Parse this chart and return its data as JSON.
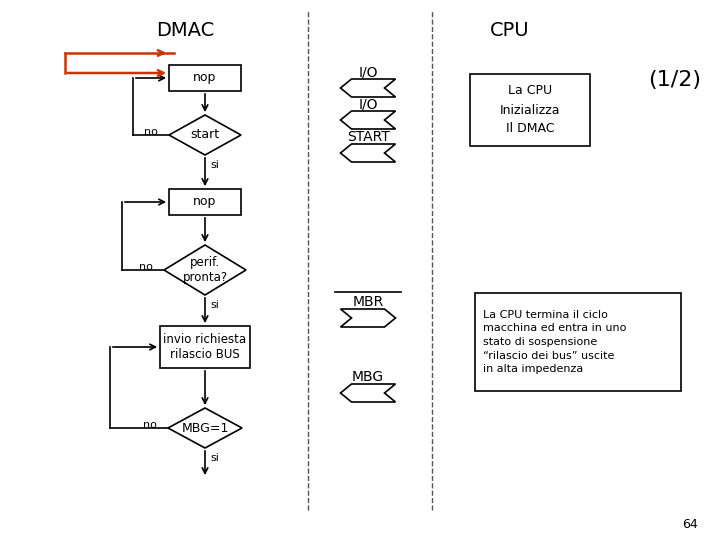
{
  "bg_color": "#ffffff",
  "title_dmac": "DMAC",
  "title_cpu": "CPU",
  "subtitle": "(1/2)",
  "page_num": "64",
  "flow_color": "#000000",
  "loop_color": "#cc3300",
  "dashed_line_color": "#555555",
  "arrow_color": "#000000",
  "cpu_box1_text": "La CPU\nInizializza\nIl DMAC",
  "cpu_box2_line1": "La CPU termina il ciclo",
  "cpu_box2_line2": "macchina ed entra in uno",
  "cpu_box2_line3": "stato di sospensione",
  "cpu_box2_line4": "“rilascio dei bus” uscite",
  "cpu_box2_line5": "in alta impedenza"
}
